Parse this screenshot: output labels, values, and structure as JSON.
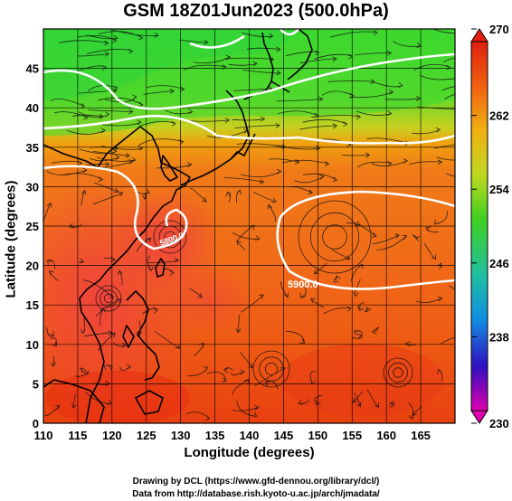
{
  "title": "GSM 18Z01Jun2023 (500.0hPa)",
  "xlabel": "Longitude (degrees)",
  "ylabel": "Latitude (degrees)",
  "credits": {
    "line1": "Drawing by DCL (https://www.gfd-dennou.org/library/dcl/)",
    "line2": "Data from http://database.rish.kyoto-u.ac.jp/arch/jmadata/"
  },
  "chart_data": {
    "type": "heatmap",
    "variable": "temperature with geopotential height contours and wind streamlines",
    "xlim": [
      110,
      170
    ],
    "ylim": [
      0,
      50
    ],
    "x_ticks": [
      110,
      115,
      120,
      125,
      130,
      135,
      140,
      145,
      150,
      155,
      160,
      165
    ],
    "y_ticks": [
      0,
      5,
      10,
      15,
      20,
      25,
      30,
      35,
      40,
      45
    ],
    "grid": true,
    "colorbar": {
      "min": 230,
      "max": 270,
      "ticks": [
        230,
        238,
        246,
        254,
        262,
        270
      ],
      "stops": [
        "#e000b0",
        "#3010c0",
        "#1090e0",
        "#20c0a0",
        "#40d020",
        "#c0d820",
        "#f0b010",
        "#f06010",
        "#e02010"
      ],
      "placement": "right"
    },
    "contour_labels": [
      "5800.0",
      "5900.0"
    ],
    "colors": {
      "warm": "#e82a10",
      "mid": "#f07a10",
      "cool": "#6ad82a",
      "coast": "#000000",
      "contour": "#ffffff"
    }
  }
}
